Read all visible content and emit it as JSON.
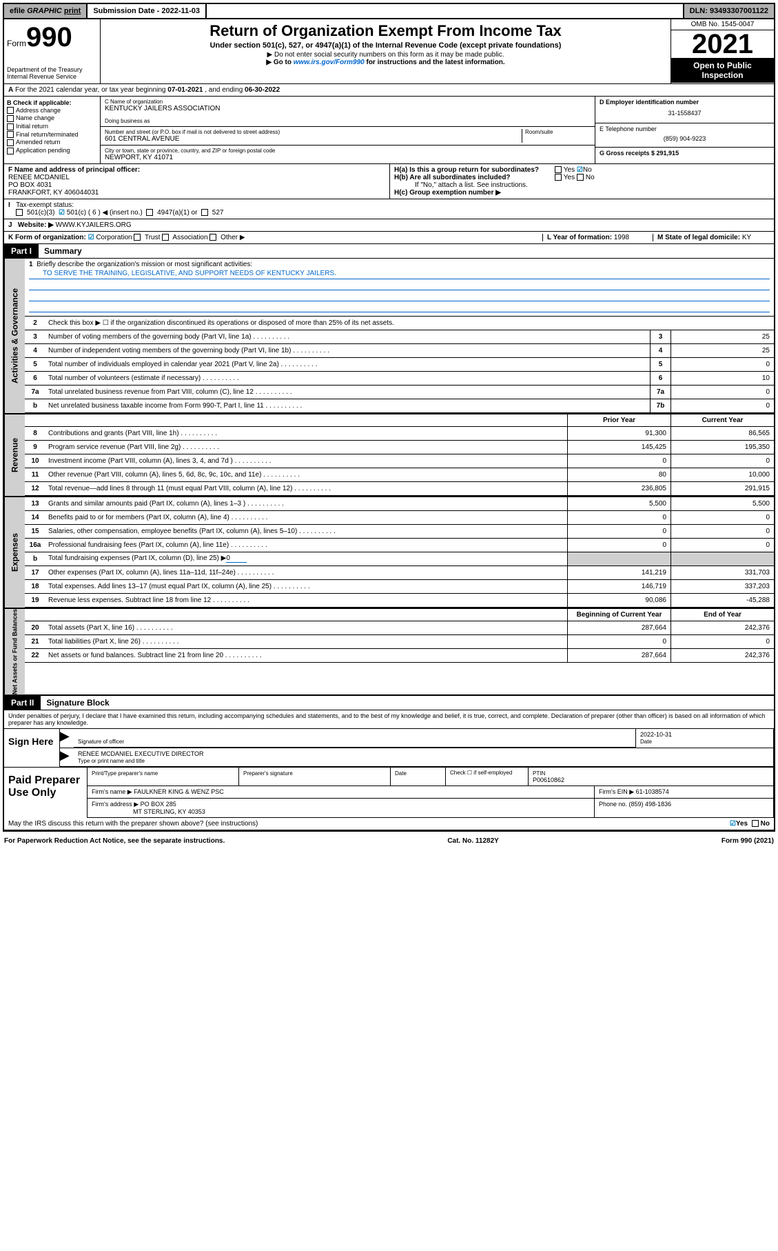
{
  "topbar": {
    "efile": "efile",
    "graphic": "GRAPHIC",
    "print": "print",
    "subdate_label": "Submission Date - ",
    "subdate": "2022-11-03",
    "dln": "DLN: 93493307001122"
  },
  "header": {
    "form": "Form",
    "num": "990",
    "dept": "Department of the Treasury",
    "irs": "Internal Revenue Service",
    "title": "Return of Organization Exempt From Income Tax",
    "sub": "Under section 501(c), 527, or 4947(a)(1) of the Internal Revenue Code (except private foundations)",
    "note1": "▶ Do not enter social security numbers on this form as it may be made public.",
    "note2_a": "▶ Go to ",
    "note2_link": "www.irs.gov/Form990",
    "note2_b": " for instructions and the latest information.",
    "omb": "OMB No. 1545-0047",
    "year": "2021",
    "inspect": "Open to Public Inspection"
  },
  "rowA": {
    "text_a": "For the 2021 calendar year, or tax year beginning ",
    "begin": "07-01-2021",
    "text_b": " , and ending ",
    "end": "06-30-2022"
  },
  "B": {
    "label": "B Check if applicable:",
    "items": [
      "Address change",
      "Name change",
      "Initial return",
      "Final return/terminated",
      "Amended return",
      "Application pending"
    ]
  },
  "C": {
    "name_label": "C Name of organization",
    "name": "KENTUCKY JAILERS ASSOCIATION",
    "dba_label": "Doing business as",
    "dba": "",
    "addr_label": "Number and street (or P.O. box if mail is not delivered to street address)",
    "room_label": "Room/suite",
    "addr": "601 CENTRAL AVENUE",
    "city_label": "City or town, state or province, country, and ZIP or foreign postal code",
    "city": "NEWPORT, KY  41071"
  },
  "D_col": {
    "d_label": "D Employer identification number",
    "d": "31-1558437",
    "e_label": "E Telephone number",
    "e": "(859) 904-9223",
    "g": "G Gross receipts $ 291,915"
  },
  "F": {
    "label": "F  Name and address of principal officer:",
    "name": "RENEE MCDANIEL",
    "addr1": "PO BOX 4031",
    "addr2": "FRANKFORT, KY  406044031"
  },
  "H": {
    "a": "H(a)  Is this a group return for subordinates?",
    "yes": "Yes",
    "no": "No",
    "b": "H(b)  Are all subordinates included?",
    "b_note": "If \"No,\" attach a list. See instructions.",
    "c": "H(c)  Group exemption number ▶"
  },
  "I": {
    "label": "Tax-exempt status:",
    "c3": "501(c)(3)",
    "c6": "501(c) ( 6 ) ◀ (insert no.)",
    "a1": "4947(a)(1) or",
    "s527": "527"
  },
  "J": {
    "label": "Website: ▶",
    "val": "WWW.KYJAILERS.ORG"
  },
  "K": {
    "label": "K Form of organization:",
    "corp": "Corporation",
    "trust": "Trust",
    "assoc": "Association",
    "other": "Other ▶"
  },
  "L": {
    "label": "L Year of formation: ",
    "val": "1998"
  },
  "M": {
    "label": "M State of legal domicile: ",
    "val": "KY"
  },
  "part1": {
    "num": "Part I",
    "title": "Summary"
  },
  "briefly": {
    "label": "Briefly describe the organization's mission or most significant activities:",
    "val": "TO SERVE THE TRAINING, LEGISLATIVE, AND SUPPORT NEEDS OF KENTUCKY JAILERS."
  },
  "line2": "Check this box ▶ ☐  if the organization discontinued its operations or disposed of more than 25% of its net assets.",
  "sidebars": {
    "gov": "Activities & Governance",
    "rev": "Revenue",
    "exp": "Expenses",
    "net": "Net Assets or Fund Balances"
  },
  "col_headers": {
    "prior": "Prior Year",
    "curr": "Current Year",
    "bcy": "Beginning of Current Year",
    "eoy": "End of Year"
  },
  "lines_gov": [
    {
      "n": "3",
      "label": "Number of voting members of the governing body (Part VI, line 1a)",
      "box": "3",
      "v": "25"
    },
    {
      "n": "4",
      "label": "Number of independent voting members of the governing body (Part VI, line 1b)",
      "box": "4",
      "v": "25"
    },
    {
      "n": "5",
      "label": "Total number of individuals employed in calendar year 2021 (Part V, line 2a)",
      "box": "5",
      "v": "0"
    },
    {
      "n": "6",
      "label": "Total number of volunteers (estimate if necessary)",
      "box": "6",
      "v": "10"
    },
    {
      "n": "7a",
      "label": "Total unrelated business revenue from Part VIII, column (C), line 12",
      "box": "7a",
      "v": "0"
    },
    {
      "n": "b",
      "label": "Net unrelated business taxable income from Form 990-T, Part I, line 11",
      "box": "7b",
      "v": "0"
    }
  ],
  "lines_rev": [
    {
      "n": "8",
      "label": "Contributions and grants (Part VIII, line 1h)",
      "p": "91,300",
      "c": "86,565"
    },
    {
      "n": "9",
      "label": "Program service revenue (Part VIII, line 2g)",
      "p": "145,425",
      "c": "195,350"
    },
    {
      "n": "10",
      "label": "Investment income (Part VIII, column (A), lines 3, 4, and 7d )",
      "p": "0",
      "c": "0"
    },
    {
      "n": "11",
      "label": "Other revenue (Part VIII, column (A), lines 5, 6d, 8c, 9c, 10c, and 11e)",
      "p": "80",
      "c": "10,000"
    },
    {
      "n": "12",
      "label": "Total revenue—add lines 8 through 11 (must equal Part VIII, column (A), line 12)",
      "p": "236,805",
      "c": "291,915"
    }
  ],
  "lines_exp": [
    {
      "n": "13",
      "label": "Grants and similar amounts paid (Part IX, column (A), lines 1–3 )",
      "p": "5,500",
      "c": "5,500"
    },
    {
      "n": "14",
      "label": "Benefits paid to or for members (Part IX, column (A), line 4)",
      "p": "0",
      "c": "0"
    },
    {
      "n": "15",
      "label": "Salaries, other compensation, employee benefits (Part IX, column (A), lines 5–10)",
      "p": "0",
      "c": "0"
    },
    {
      "n": "16a",
      "label": "Professional fundraising fees (Part IX, column (A), line 11e)",
      "p": "0",
      "c": "0"
    }
  ],
  "line16b": {
    "n": "b",
    "label": "Total fundraising expenses (Part IX, column (D), line 25) ▶",
    "val": "0"
  },
  "lines_exp2": [
    {
      "n": "17",
      "label": "Other expenses (Part IX, column (A), lines 11a–11d, 11f–24e)",
      "p": "141,219",
      "c": "331,703"
    },
    {
      "n": "18",
      "label": "Total expenses. Add lines 13–17 (must equal Part IX, column (A), line 25)",
      "p": "146,719",
      "c": "337,203"
    },
    {
      "n": "19",
      "label": "Revenue less expenses. Subtract line 18 from line 12",
      "p": "90,086",
      "c": "-45,288"
    }
  ],
  "lines_net": [
    {
      "n": "20",
      "label": "Total assets (Part X, line 16)",
      "p": "287,664",
      "c": "242,376"
    },
    {
      "n": "21",
      "label": "Total liabilities (Part X, line 26)",
      "p": "0",
      "c": "0"
    },
    {
      "n": "22",
      "label": "Net assets or fund balances. Subtract line 21 from line 20",
      "p": "287,664",
      "c": "242,376"
    }
  ],
  "part2": {
    "num": "Part II",
    "title": "Signature Block"
  },
  "sig": {
    "declare": "Under penalties of perjury, I declare that I have examined this return, including accompanying schedules and statements, and to the best of my knowledge and belief, it is true, correct, and complete. Declaration of preparer (other than officer) is based on all information of which preparer has any knowledge.",
    "sign_here": "Sign Here",
    "sig_officer": "Signature of officer",
    "date": "Date",
    "sig_date": "2022-10-31",
    "name": "RENEE MCDANIEL  EXECUTIVE DIRECTOR",
    "type_name": "Type or print name and title"
  },
  "paid": {
    "label": "Paid Preparer Use Only",
    "print_name": "Print/Type preparer's name",
    "prep_sig": "Preparer's signature",
    "date": "Date",
    "check": "Check ☐ if self-employed",
    "ptin_label": "PTIN",
    "ptin": "P00610862",
    "firm_name_l": "Firm's name    ▶",
    "firm_name": "FAULKNER KING & WENZ PSC",
    "firm_ein_l": "Firm's EIN ▶",
    "firm_ein": "61-1038574",
    "firm_addr_l": "Firm's address ▶",
    "firm_addr": "PO BOX 285",
    "firm_addr2": "MT STERLING, KY  40353",
    "phone_l": "Phone no. ",
    "phone": "(859) 498-1836"
  },
  "may_discuss": "May the IRS discuss this return with the preparer shown above? (see instructions)",
  "footer": {
    "pra": "For Paperwork Reduction Act Notice, see the separate instructions.",
    "cat": "Cat. No. 11282Y",
    "form": "Form 990 (2021)"
  }
}
